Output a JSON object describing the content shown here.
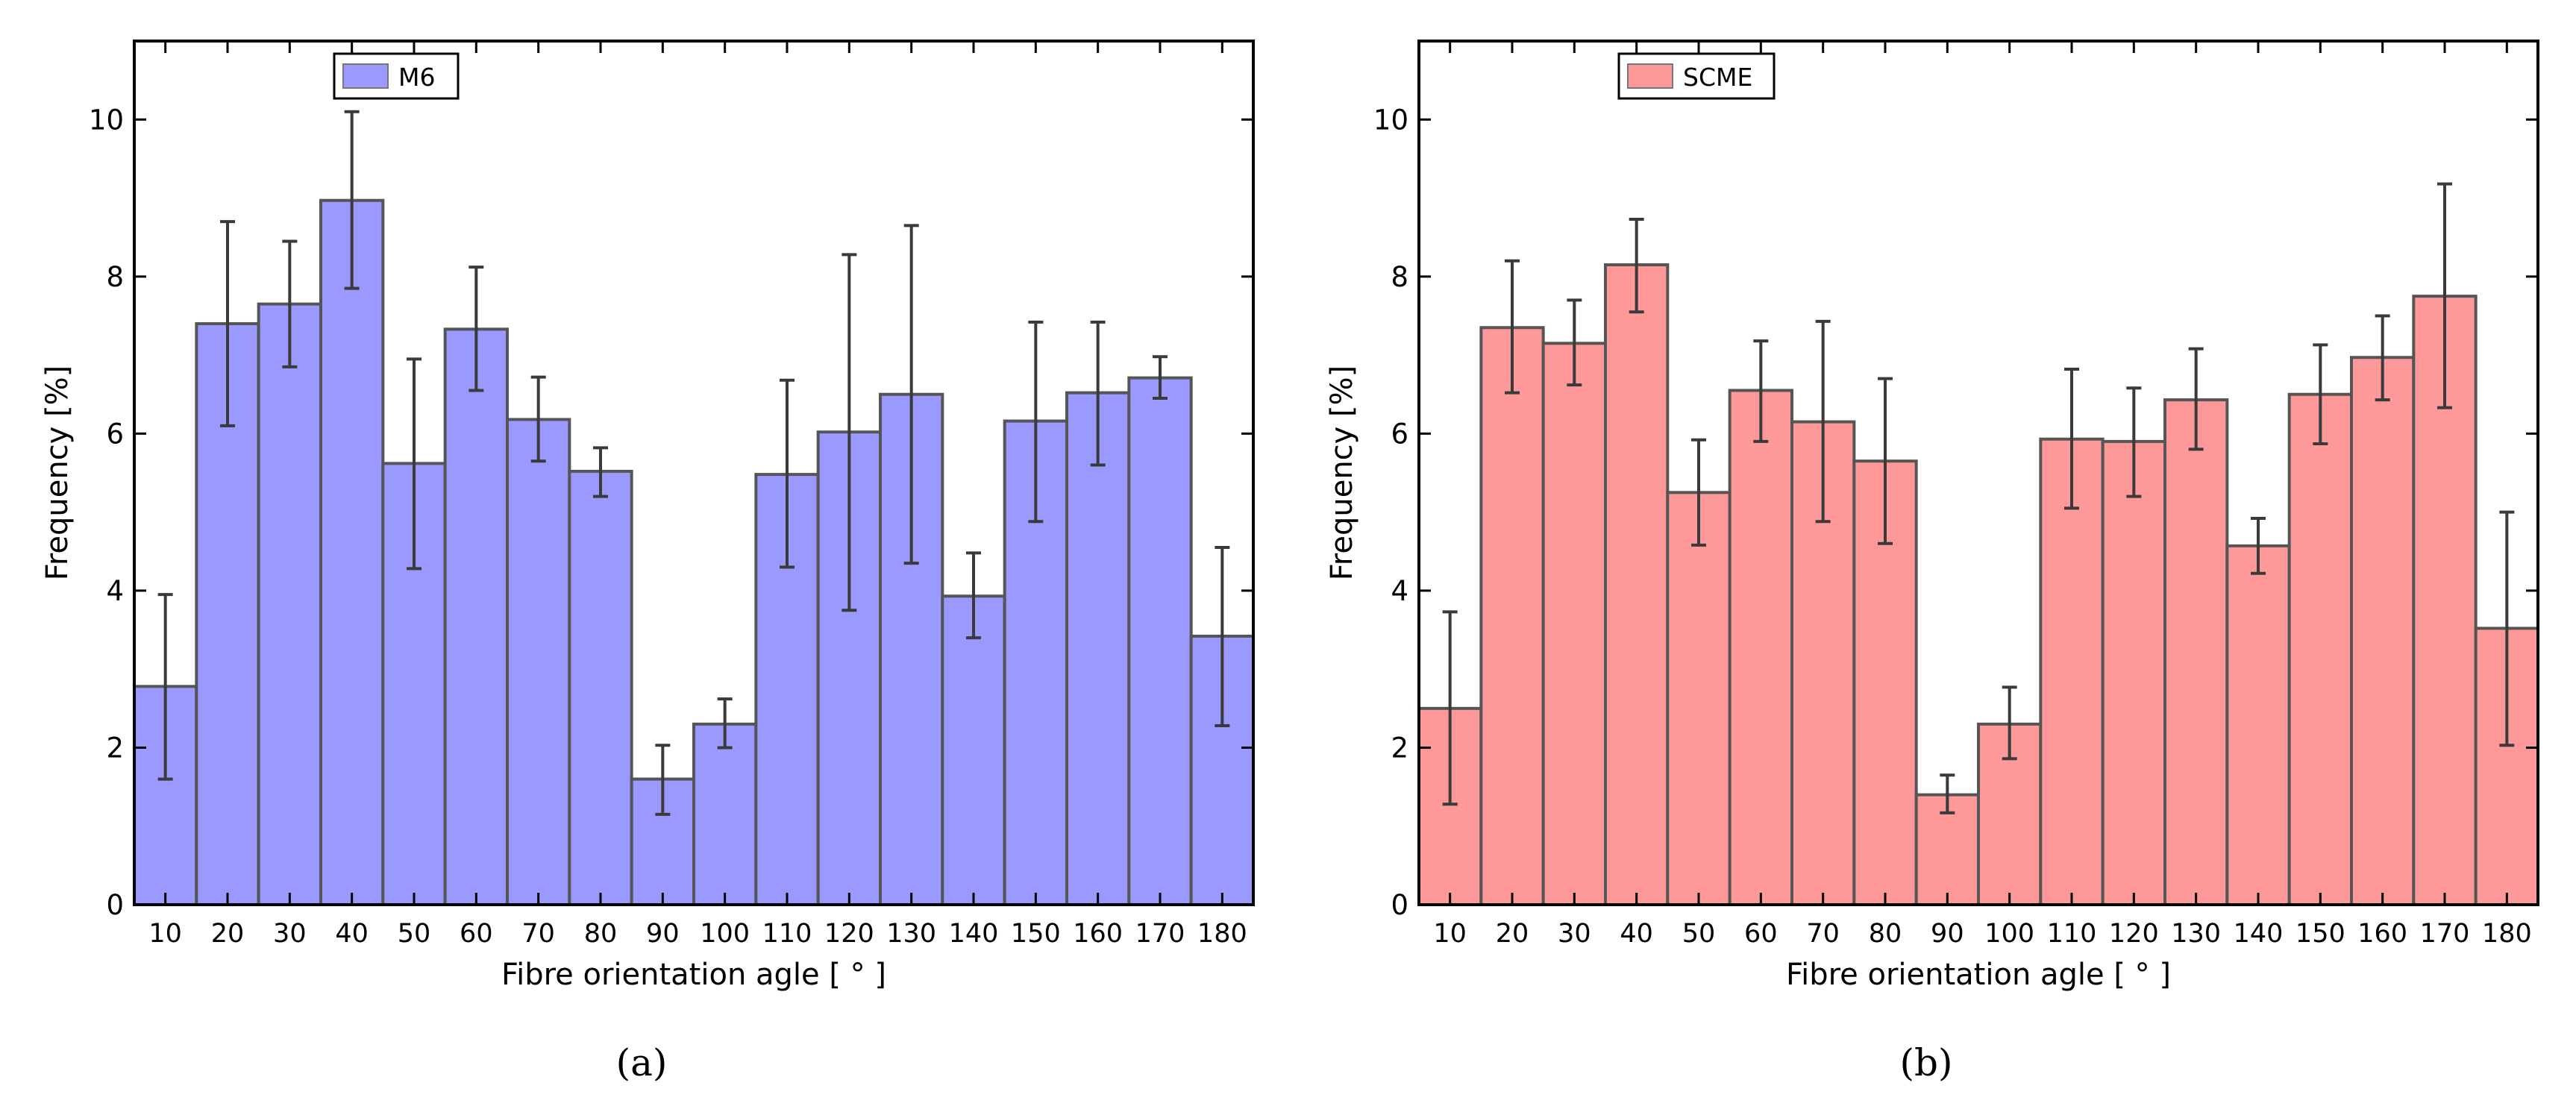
{
  "figure": {
    "panels": [
      {
        "caption": "(a)"
      },
      {
        "caption": "(b)"
      }
    ]
  },
  "chart_data": [
    {
      "type": "bar",
      "legend": "M6",
      "legend_position": "top-left",
      "color": "#9999ff",
      "xlabel": "Fibre orientation agle [ ° ]",
      "ylabel": "Frequency [%]",
      "ylim": [
        0,
        11
      ],
      "yticks": [
        0,
        2,
        4,
        6,
        8,
        10
      ],
      "ytick_labels": [
        "0",
        "2",
        "4",
        "6",
        "8",
        "10"
      ],
      "categories": [
        "10",
        "20",
        "30",
        "40",
        "50",
        "60",
        "70",
        "80",
        "90",
        "100",
        "110",
        "120",
        "130",
        "140",
        "150",
        "160",
        "170",
        "180"
      ],
      "values": [
        2.78,
        7.4,
        7.65,
        8.97,
        5.62,
        7.33,
        6.18,
        5.52,
        1.6,
        2.3,
        5.48,
        6.02,
        6.5,
        3.93,
        6.16,
        6.52,
        6.71,
        3.42
      ],
      "error_low": [
        1.6,
        6.1,
        6.85,
        7.85,
        4.28,
        6.55,
        5.65,
        5.2,
        1.15,
        2.0,
        4.3,
        3.75,
        4.35,
        3.4,
        4.88,
        5.6,
        6.45,
        2.28
      ],
      "error_high": [
        3.95,
        8.7,
        8.45,
        10.1,
        6.95,
        8.12,
        6.72,
        5.82,
        2.03,
        2.62,
        6.68,
        8.28,
        8.65,
        4.48,
        7.42,
        7.42,
        6.98,
        4.55
      ]
    },
    {
      "type": "bar",
      "legend": "SCME",
      "legend_position": "top-left",
      "color": "#ff9999",
      "xlabel": "Fibre orientation agle [ ° ]",
      "ylabel": "Frequency [%]",
      "ylim": [
        0,
        11
      ],
      "yticks": [
        0,
        2,
        4,
        6,
        8,
        10
      ],
      "ytick_labels": [
        "0",
        "2",
        "4",
        "6",
        "8",
        "10"
      ],
      "categories": [
        "10",
        "20",
        "30",
        "40",
        "50",
        "60",
        "70",
        "80",
        "90",
        "100",
        "110",
        "120",
        "130",
        "140",
        "150",
        "160",
        "170",
        "180"
      ],
      "values": [
        2.5,
        7.35,
        7.15,
        8.15,
        5.25,
        6.55,
        6.15,
        5.65,
        1.4,
        2.3,
        5.93,
        5.9,
        6.43,
        4.57,
        6.5,
        6.97,
        7.75,
        3.52
      ],
      "error_low": [
        1.28,
        6.52,
        6.62,
        7.55,
        4.58,
        5.9,
        4.88,
        4.6,
        1.17,
        1.86,
        5.05,
        5.2,
        5.8,
        4.22,
        5.87,
        6.43,
        6.33,
        2.03
      ],
      "error_high": [
        3.73,
        8.2,
        7.7,
        8.73,
        5.92,
        7.18,
        7.43,
        6.7,
        1.65,
        2.77,
        6.82,
        6.58,
        7.08,
        4.92,
        7.13,
        7.5,
        9.18,
        5.0
      ]
    }
  ]
}
